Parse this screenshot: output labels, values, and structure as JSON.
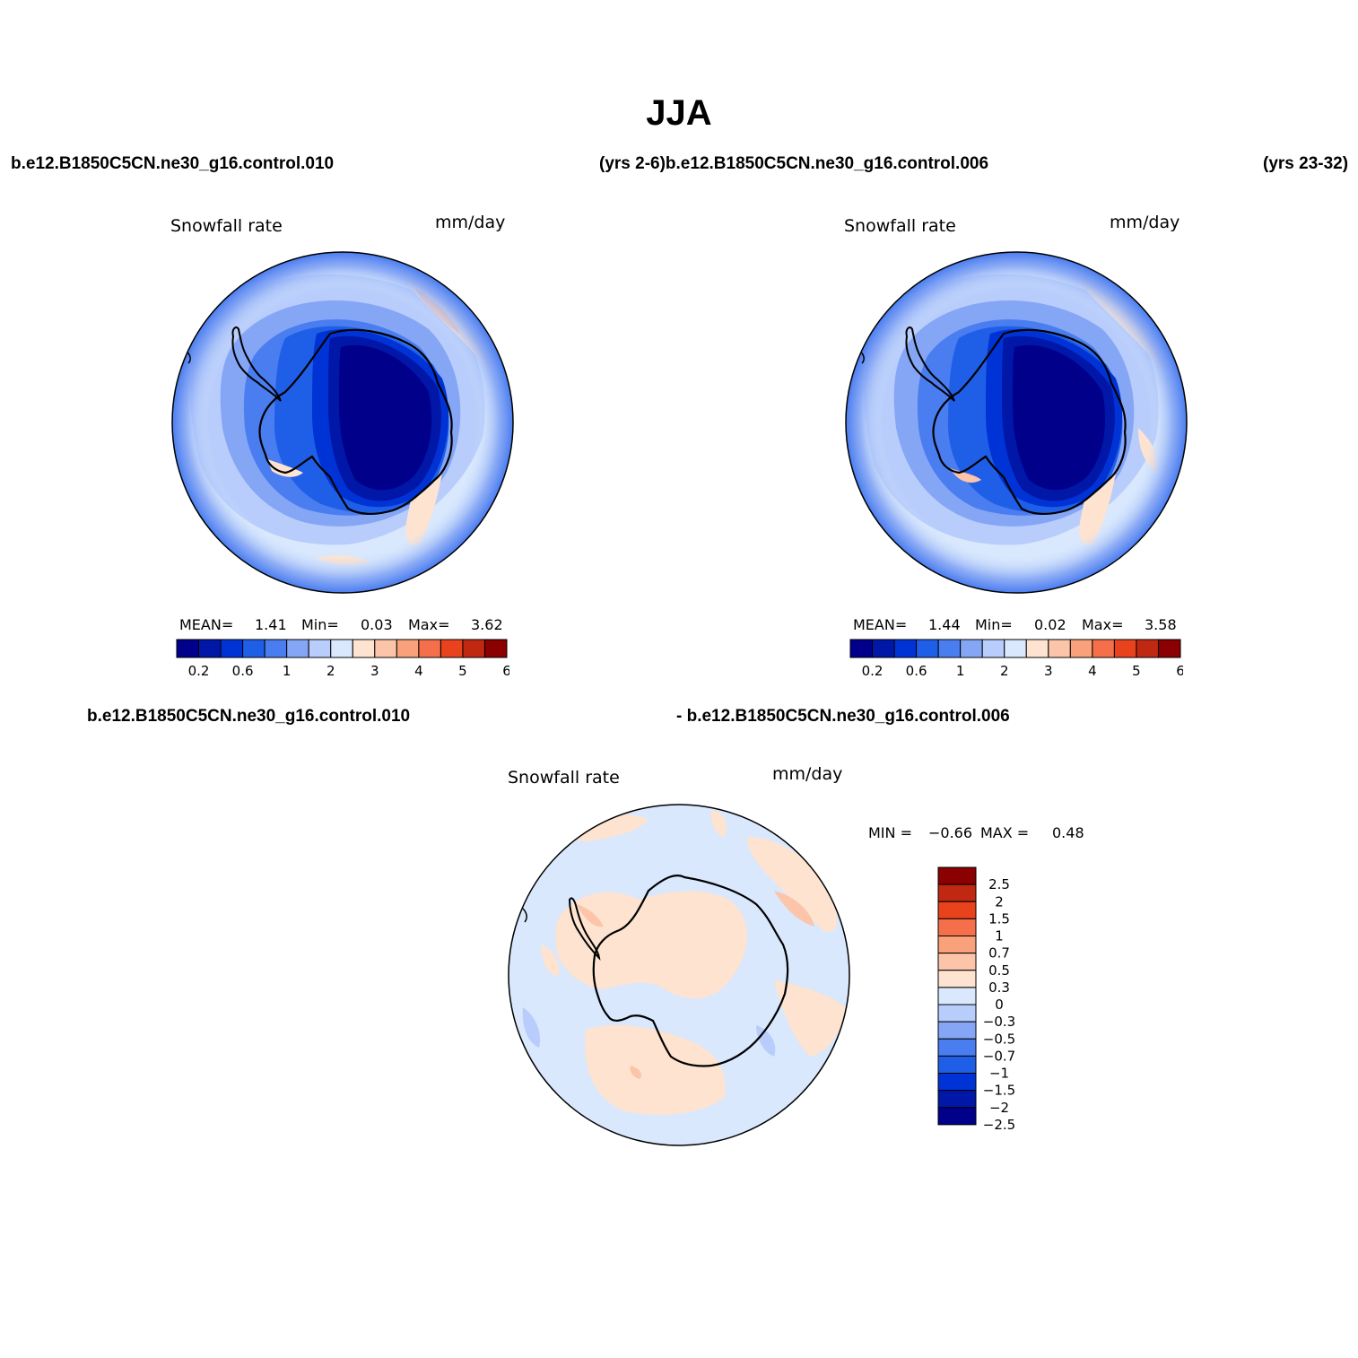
{
  "figure": {
    "title": "JJA",
    "top_left_case": "b.e12.B1850C5CN.ne30_g16.control.010",
    "top_middle": "(yrs 2-6)b.e12.B1850C5CN.ne30_g16.control.006",
    "top_right_years": "(yrs 23-32)",
    "bottom_left_case": "b.e12.B1850C5CN.ne30_g16.control.010",
    "bottom_right_case": "- b.e12.B1850C5CN.ne30_g16.control.006"
  },
  "panels": [
    {
      "variable": "Snowfall rate",
      "units": "mm/day",
      "mean_label": "MEAN=",
      "mean": "1.41",
      "min_label": "Min=",
      "min": "0.03",
      "max_label": "Max=",
      "max": "3.62"
    },
    {
      "variable": "Snowfall rate",
      "units": "mm/day",
      "mean_label": "MEAN=",
      "mean": "1.44",
      "min_label": "Min=",
      "min": "0.02",
      "max_label": "Max=",
      "max": "3.58"
    },
    {
      "variable": "Snowfall rate",
      "units": "mm/day",
      "min_label": "MIN =",
      "min": "−0.66",
      "max_label": "MAX =",
      "max": "0.48"
    }
  ],
  "colorbar_abs": {
    "colors": [
      "#00008b",
      "#0017a8",
      "#0033d6",
      "#1f5fe8",
      "#4a7df0",
      "#85a6f5",
      "#b8cdfb",
      "#d9e8fd",
      "#fde3d0",
      "#fcc4a8",
      "#f9a17a",
      "#f5704a",
      "#e8431c",
      "#c02812",
      "#8b0000"
    ],
    "labels": [
      "0.2",
      "0.6",
      "1",
      "2",
      "3",
      "4",
      "5",
      "6"
    ]
  },
  "colorbar_diff": {
    "colors": [
      "#00008b",
      "#0017a8",
      "#0033d6",
      "#1f5fe8",
      "#4a7df0",
      "#85a6f5",
      "#b8cdfb",
      "#d9e8fd",
      "#fde3d0",
      "#fcc4a8",
      "#f9a17a",
      "#f5704a",
      "#e8431c",
      "#c02812",
      "#8b0000"
    ],
    "labels": [
      "2.5",
      "2",
      "1.5",
      "1",
      "0.7",
      "0.5",
      "0.3",
      "0",
      "−0.3",
      "−0.5",
      "−0.7",
      "−1",
      "−1.5",
      "−2",
      "−2.5"
    ]
  }
}
